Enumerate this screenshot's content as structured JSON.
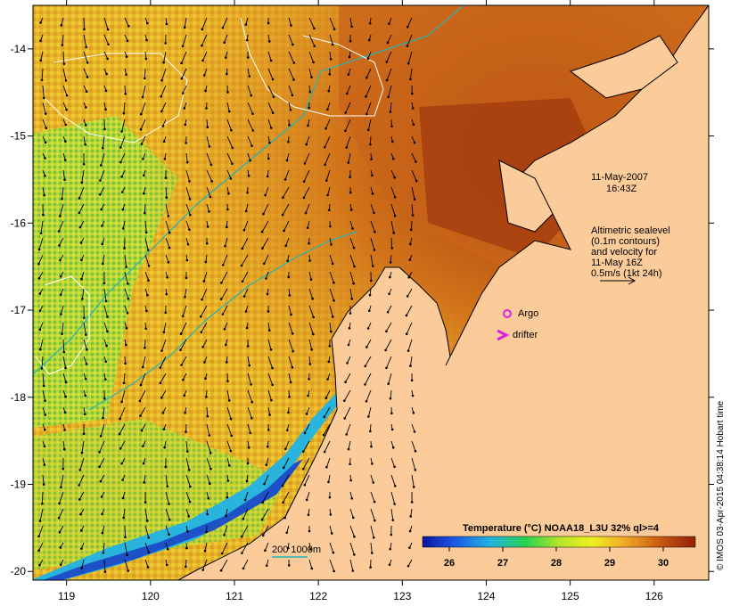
{
  "map": {
    "x_ticks": [
      "119",
      "120",
      "121",
      "122",
      "123",
      "124",
      "125",
      "126"
    ],
    "y_ticks": [
      "-14",
      "-15",
      "-16",
      "-17",
      "-18",
      "-19",
      "-20"
    ],
    "date_line1": "11-May-2007",
    "date_line2": "16:43Z",
    "sealevel_lines": [
      "Altimetric sealevel",
      "(0.1m contours)",
      "and velocity for",
      "11-May 16Z",
      "0.5m/s (1kt 24h)"
    ],
    "argo_label": "Argo",
    "drifter_label": "drifter",
    "bathy_label": "200  1000m",
    "colorbar": {
      "title": "Temperature (°C) NOAA18_L3U 32% ql>=4",
      "ticks": [
        "26",
        "27",
        "28",
        "29",
        "30"
      ],
      "range": [
        25.5,
        30.6
      ]
    },
    "credit": "© IMOS 03-Apr-2015 04:38:14 Hobart time",
    "colors": {
      "land": "#fccb9a",
      "argo": "#e020e0",
      "drifter": "#e020e0",
      "bathy_contour": "#22b4b4",
      "sealevel_contour": "#ffffff"
    }
  }
}
